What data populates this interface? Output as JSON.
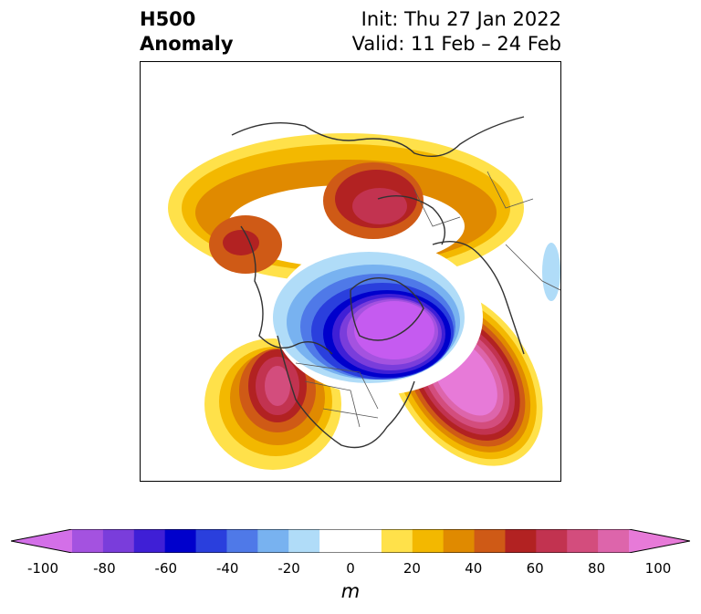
{
  "title": {
    "left_line1": "H500",
    "left_line2": "Anomaly",
    "right_line1": "Init: Thu 27 Jan 2022",
    "right_line2": "Valid: 11 Feb – 24 Feb"
  },
  "colorbar": {
    "unit": "m",
    "ticks": [
      "-100",
      "-80",
      "-60",
      "-40",
      "-20",
      "0",
      "20",
      "40",
      "60",
      "80",
      "100"
    ],
    "colors": [
      "#d36fe8",
      "#a452e0",
      "#7a3ddb",
      "#3f1fd6",
      "#0000cc",
      "#2a3fdd",
      "#4f79e8",
      "#78b2f0",
      "#b0dcf8",
      "#ffffff",
      "#ffffff",
      "#ffe14a",
      "#f3b800",
      "#e08a00",
      "#cf5a16",
      "#b22222",
      "#c23350",
      "#d34d7d",
      "#dd65ab",
      "#e77ad8"
    ]
  },
  "map": {
    "projection": "north-polar-stereographic",
    "positive_anomaly_color": "#e77ad8",
    "negative_anomaly_color": "#c55bf0",
    "coastline_color": "#333333"
  }
}
